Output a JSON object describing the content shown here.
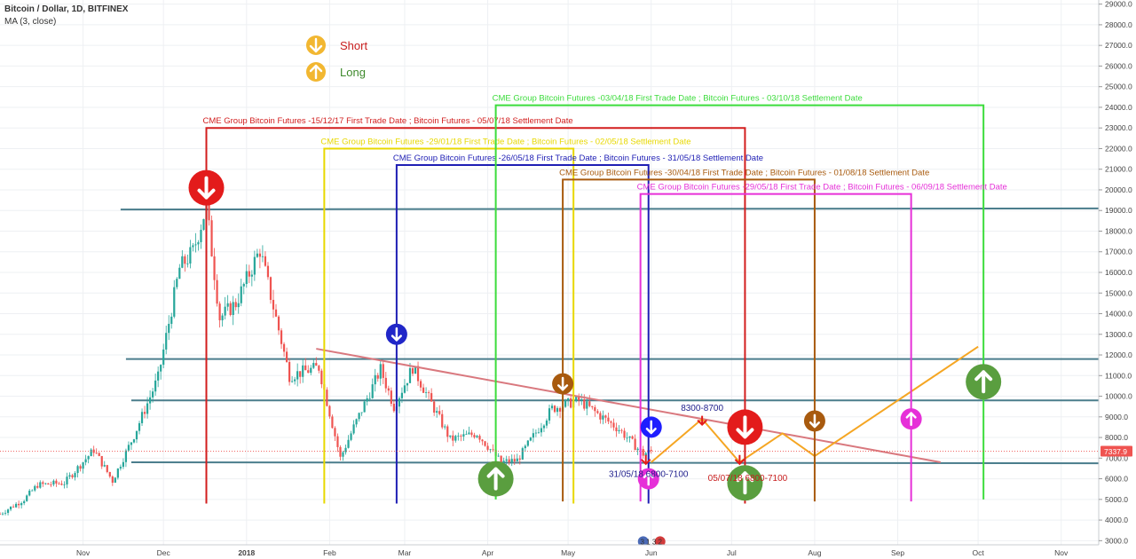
{
  "header": {
    "symbol": "Bitcoin / Dollar, 1D, BITFINEX",
    "indicator": "MA (3, close)"
  },
  "legend": {
    "short_label": "Short",
    "long_label": "Long"
  },
  "colors": {
    "up_candle": "#26a69a",
    "down_candle": "#ef5350",
    "h_level": "#4a7d8c",
    "trendline": "#d9787e",
    "projection": "#f5a623",
    "short": "#e31b1b",
    "long": "#5a9e3f",
    "price_tag": "#ef5350"
  },
  "chart_data": {
    "type": "candlestick",
    "title": "Bitcoin / Dollar, 1D, BITFINEX",
    "y_axis": {
      "min": 2800,
      "max": 29200,
      "ticks": [
        3000,
        4000,
        5000,
        6000,
        7000,
        8000,
        9000,
        10000,
        11000,
        12000,
        13000,
        14000,
        15000,
        16000,
        17000,
        18000,
        19000,
        20000,
        21000,
        22000,
        23000,
        24000,
        25000,
        26000,
        27000,
        28000,
        29000
      ]
    },
    "x_axis": {
      "start": "2017-10-01",
      "end": "2018-11-15",
      "ticks": [
        {
          "label": "Nov",
          "date": "2017-11-01"
        },
        {
          "label": "Dec",
          "date": "2017-12-01"
        },
        {
          "label": "2018",
          "date": "2018-01-01",
          "bold": true
        },
        {
          "label": "Feb",
          "date": "2018-02-01"
        },
        {
          "label": "Mar",
          "date": "2018-03-01"
        },
        {
          "label": "Apr",
          "date": "2018-04-01"
        },
        {
          "label": "May",
          "date": "2018-05-01"
        },
        {
          "label": "Jun",
          "date": "2018-06-01"
        },
        {
          "label": "Jul",
          "date": "2018-07-01"
        },
        {
          "label": "Aug",
          "date": "2018-08-01"
        },
        {
          "label": "Sep",
          "date": "2018-09-01"
        },
        {
          "label": "Oct",
          "date": "2018-10-01"
        },
        {
          "label": "Nov",
          "date": "2018-11-01"
        }
      ]
    },
    "current_price": {
      "value": 7337.9,
      "label": "7337.9"
    },
    "price_path": [
      [
        "2017-10-01",
        4300
      ],
      [
        "2017-10-10",
        5000
      ],
      [
        "2017-10-15",
        5700
      ],
      [
        "2017-10-25",
        5800
      ],
      [
        "2017-11-05",
        7400
      ],
      [
        "2017-11-12",
        5900
      ],
      [
        "2017-11-20",
        8100
      ],
      [
        "2017-11-29",
        10900
      ],
      [
        "2017-12-07",
        16200
      ],
      [
        "2017-12-12",
        17000
      ],
      [
        "2017-12-17",
        19200
      ],
      [
        "2017-12-22",
        13800
      ],
      [
        "2017-12-28",
        14500
      ],
      [
        "2018-01-06",
        17100
      ],
      [
        "2018-01-17",
        11000
      ],
      [
        "2018-01-28",
        11400
      ],
      [
        "2018-02-05",
        7000
      ],
      [
        "2018-02-10",
        8500
      ],
      [
        "2018-02-20",
        11300
      ],
      [
        "2018-02-25",
        9500
      ],
      [
        "2018-03-04",
        11400
      ],
      [
        "2018-03-18",
        7900
      ],
      [
        "2018-03-28",
        8200
      ],
      [
        "2018-04-06",
        6800
      ],
      [
        "2018-04-12",
        6900
      ],
      [
        "2018-04-25",
        9400
      ],
      [
        "2018-05-05",
        9800
      ],
      [
        "2018-05-20",
        8400
      ],
      [
        "2018-05-29",
        7200
      ],
      [
        "2018-06-01",
        7337
      ]
    ],
    "horizontal_levels": [
      {
        "y1": 19050,
        "y2": 19100,
        "d1": "2017-11-15",
        "d2": "2018-11-15"
      },
      {
        "y1": 11800,
        "y2": 11800,
        "d1": "2017-11-17",
        "d2": "2018-11-15"
      },
      {
        "y1": 9800,
        "y2": 9800,
        "d1": "2017-11-19",
        "d2": "2018-11-15"
      },
      {
        "y1": 6800,
        "y2": 6750,
        "d1": "2017-11-19",
        "d2": "2018-11-15"
      }
    ],
    "trendline": {
      "d1": "2018-01-27",
      "y1": 12300,
      "d2": "2018-09-17",
      "y2": 6800
    },
    "projection": [
      [
        "2018-06-01",
        6800
      ],
      [
        "2018-06-20",
        8900
      ],
      [
        "2018-07-04",
        6800
      ],
      [
        "2018-07-20",
        8200
      ],
      [
        "2018-08-01",
        7100
      ],
      [
        "2018-10-01",
        12400
      ]
    ],
    "cme_contracts": [
      {
        "label": "CME Group Bitcoin Futures -15/12/17 First Trade Date  ;  Bitcoin Futures - 05/07/18 Settlement Date",
        "color": "#d21e1e",
        "start": "2017-12-17",
        "end": "2018-07-06",
        "top": 23000,
        "bottom": 4800
      },
      {
        "label": "CME Group Bitcoin Futures -29/01/18 First Trade Date  ;  Bitcoin Futures - 02/05/18 Settlement Date",
        "color": "#e8d800",
        "start": "2018-01-30",
        "end": "2018-05-03",
        "top": 22000,
        "bottom": 4800
      },
      {
        "label": "CME Group Bitcoin Futures -26/05/18 First Trade Date  ;  Bitcoin Futures - 31/05/18 Settlement Date",
        "color": "#1e1eb4",
        "start": "2018-02-26",
        "end": "2018-05-31",
        "top": 21200,
        "bottom": 4800
      },
      {
        "label": "CME Group Bitcoin Futures -03/04/18 First Trade Date  ;  Bitcoin Futures - 03/10/18 Settlement Date",
        "color": "#3cdc3c",
        "start": "2018-04-04",
        "end": "2018-10-03",
        "top": 24100,
        "bottom": 5000
      },
      {
        "label": "CME Group Bitcoin Futures -30/04/18 First Trade Date  ;  Bitcoin Futures - 01/08/18 Settlement Date",
        "color": "#a85a0e",
        "start": "2018-04-29",
        "end": "2018-08-01",
        "top": 20500,
        "bottom": 4900
      },
      {
        "label": "CME Group Bitcoin Futures -29/05/18 First Trade Date  ;  Bitcoin Futures - 06/09/18 Settlement Date",
        "color": "#e630d8",
        "start": "2018-05-28",
        "end": "2018-09-06",
        "top": 19800,
        "bottom": 4900
      }
    ],
    "signals": [
      {
        "type": "short",
        "date": "2017-12-17",
        "price": 20100,
        "color": "#e31b1b",
        "size": 20
      },
      {
        "type": "short",
        "date": "2018-02-26",
        "price": 13000,
        "color": "#2026c8",
        "size": 12
      },
      {
        "type": "short",
        "date": "2018-04-29",
        "price": 10600,
        "color": "#a85a0e",
        "size": 12
      },
      {
        "type": "short",
        "date": "2018-06-01",
        "price": 8500,
        "color": "#1e1eff",
        "size": 12
      },
      {
        "type": "short",
        "date": "2018-07-06",
        "price": 8500,
        "color": "#e31b1b",
        "size": 20
      },
      {
        "type": "short",
        "date": "2018-08-01",
        "price": 8800,
        "color": "#a85a0e",
        "size": 12
      },
      {
        "type": "long",
        "date": "2018-09-06",
        "price": 8900,
        "color": "#e630d8",
        "size": 12
      },
      {
        "type": "long",
        "date": "2018-10-03",
        "price": 10700,
        "color": "#5a9e3f",
        "size": 20
      },
      {
        "type": "long",
        "date": "2018-04-04",
        "price": 6000,
        "color": "#5a9e3f",
        "size": 20
      },
      {
        "type": "long",
        "date": "2018-05-31",
        "price": 6000,
        "color": "#e630d8",
        "size": 12
      },
      {
        "type": "long",
        "date": "2018-07-06",
        "price": 5800,
        "color": "#5a9e3f",
        "size": 20
      }
    ],
    "annotations": [
      {
        "text": "8300-8700",
        "color": "#1e1e8c",
        "date": "2018-06-20",
        "price": 9300,
        "anchor": "middle"
      },
      {
        "text": "31/05/18 6800-7100",
        "color": "#1e1e8c",
        "date": "2018-05-31",
        "price": 6100,
        "anchor": "middle"
      },
      {
        "text": "05/07/18 6800-7100",
        "color": "#c81e1e",
        "date": "2018-07-07",
        "price": 5900,
        "anchor": "middle"
      }
    ],
    "small_markers": [
      {
        "date": "2018-05-30",
        "price": 6850,
        "color": "#e31b1b"
      },
      {
        "date": "2018-06-20",
        "price": 8750,
        "color": "#e31b1b"
      },
      {
        "date": "2018-07-04",
        "price": 6850,
        "color": "#e31b1b"
      }
    ],
    "flag_badge": {
      "text": "3 1 3 2",
      "date": "2018-06-01",
      "price": 3000
    }
  }
}
